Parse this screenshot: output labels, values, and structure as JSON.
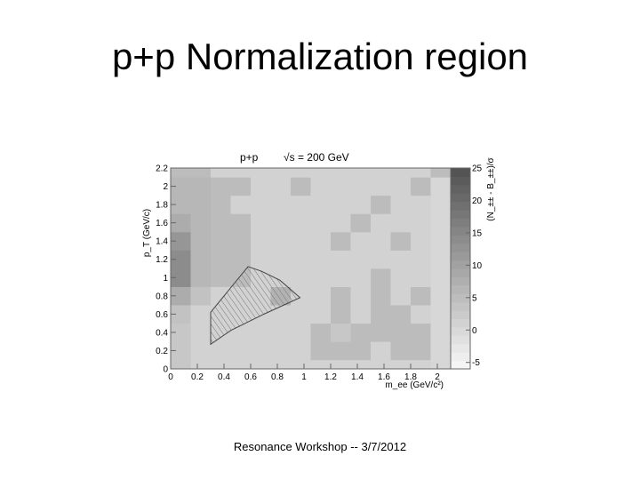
{
  "slide": {
    "title": "p+p Normalization region",
    "footer": "Resonance Workshop -- 3/7/2012"
  },
  "chart_data": {
    "type": "heatmap",
    "title": "p+p",
    "title_energy": "√s = 200 GeV",
    "xlabel": "m_ee (GeV/c²)",
    "ylabel": "p_T (GeV/c)",
    "zlabel": "(N_±± - B_±±)/σ",
    "xlim": [
      0,
      2.1
    ],
    "ylim": [
      0,
      2.2
    ],
    "zlim": [
      -6,
      25
    ],
    "x_ticks": [
      "0",
      "0.2",
      "0.4",
      "0.6",
      "0.8",
      "1",
      "1.2",
      "1.4",
      "1.6",
      "1.8",
      "2"
    ],
    "y_ticks": [
      "0",
      "0.2",
      "0.4",
      "0.6",
      "0.8",
      "1",
      "1.2",
      "1.4",
      "1.6",
      "1.8",
      "2",
      "2.2"
    ],
    "z_ticks": [
      "-5",
      "0",
      "5",
      "10",
      "15",
      "20",
      "25"
    ],
    "x_edges": [
      0,
      0.15,
      0.3,
      0.45,
      0.6,
      0.75,
      0.9,
      1.05,
      1.2,
      1.35,
      1.5,
      1.65,
      1.8,
      1.95,
      2.1
    ],
    "y_edges": [
      0,
      0.1,
      0.3,
      0.5,
      0.7,
      0.9,
      1.1,
      1.3,
      1.5,
      1.7,
      1.9,
      2.1,
      2.2
    ],
    "z_values": [
      [
        3,
        1,
        1,
        1,
        1,
        1,
        1,
        1,
        1,
        1,
        1,
        1,
        1,
        0
      ],
      [
        3,
        1,
        1,
        1,
        1,
        1,
        1,
        5,
        5,
        5,
        1,
        5,
        5,
        0
      ],
      [
        3,
        1,
        1,
        1,
        1,
        1,
        1,
        5,
        3,
        5,
        5,
        5,
        5,
        0
      ],
      [
        4,
        1,
        1,
        1,
        1,
        1,
        1,
        1,
        5,
        1,
        5,
        5,
        1,
        0
      ],
      [
        8,
        4,
        1,
        1,
        1,
        7,
        1,
        1,
        5,
        1,
        5,
        1,
        5,
        0
      ],
      [
        14,
        6,
        5,
        5,
        1,
        1,
        1,
        1,
        1,
        1,
        5,
        1,
        1,
        0
      ],
      [
        14,
        6,
        5,
        5,
        1,
        1,
        1,
        1,
        1,
        1,
        1,
        1,
        1,
        0
      ],
      [
        12,
        6,
        5,
        5,
        1,
        1,
        1,
        1,
        5,
        1,
        1,
        5,
        1,
        0
      ],
      [
        8,
        6,
        5,
        5,
        1,
        1,
        1,
        1,
        1,
        5,
        1,
        1,
        1,
        0
      ],
      [
        6,
        6,
        5,
        1,
        1,
        1,
        1,
        1,
        1,
        1,
        5,
        1,
        1,
        0
      ],
      [
        6,
        6,
        5,
        5,
        1,
        1,
        5,
        1,
        1,
        1,
        1,
        1,
        5,
        0
      ],
      [
        5,
        5,
        1,
        1,
        1,
        1,
        1,
        1,
        1,
        1,
        1,
        1,
        1,
        5
      ]
    ],
    "region_polygon": [
      [
        0.3,
        0.27
      ],
      [
        0.3,
        0.62
      ],
      [
        0.58,
        1.12
      ],
      [
        0.68,
        1.07
      ],
      [
        0.82,
        0.97
      ],
      [
        0.97,
        0.78
      ],
      [
        0.7,
        0.6
      ],
      [
        0.45,
        0.42
      ]
    ],
    "grid": false,
    "colorbar": "right",
    "colormap": "grayscale"
  }
}
